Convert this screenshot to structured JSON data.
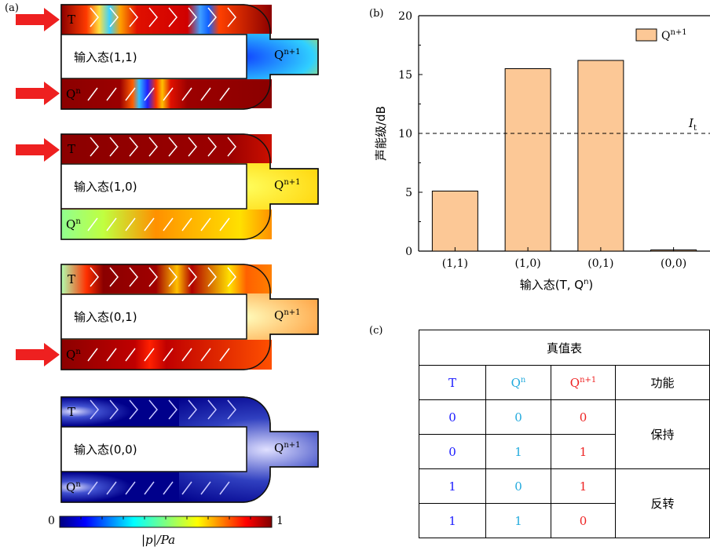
{
  "panel_a": {
    "label": "(a)",
    "devices": [
      {
        "input_label": "输入态(1,1)",
        "t_label": "T",
        "q_label": "Q",
        "q_sup": "n",
        "out_label": "Q",
        "out_sup": "n+1"
      },
      {
        "input_label": "输入态(1,0)",
        "t_label": "T",
        "q_label": "Q",
        "q_sup": "n",
        "out_label": "Q",
        "out_sup": "n+1"
      },
      {
        "input_label": "输入态(0,1)",
        "t_label": "T",
        "q_label": "Q",
        "q_sup": "n",
        "out_label": "Q",
        "out_sup": "n+1"
      },
      {
        "input_label": "输入态(0,0)",
        "t_label": "T",
        "q_label": "Q",
        "q_sup": "n",
        "out_label": "Q",
        "out_sup": "n+1"
      }
    ],
    "colorbar": {
      "min_label": "0",
      "max_label": "1",
      "label": "|p|/Pa"
    },
    "colors": {
      "arrow": "#ee2020",
      "high": "#8b0000",
      "low": "#00008b"
    }
  },
  "chart_data": {
    "type": "bar",
    "panel_label": "(b)",
    "categories": [
      "(1,1)",
      "(1,0)",
      "(0,1)",
      "(0,0)"
    ],
    "series": [
      {
        "name": "Q",
        "name_sup": "n+1",
        "values": [
          5.1,
          15.5,
          16.2,
          0.1
        ],
        "color": "#fcc896"
      }
    ],
    "xlabel": "输入态(T, Q",
    "xlabel_sup": "n",
    "xlabel_end": ")",
    "ylabel": "声能级/dB",
    "ylim": [
      0,
      20
    ],
    "yticks": [
      0,
      5,
      10,
      15,
      20
    ],
    "threshold": {
      "value": 10,
      "label": "I",
      "label_sub": "t"
    },
    "legend_position": "top-right",
    "grid": false
  },
  "panel_c": {
    "label": "(c)",
    "title": "真值表",
    "headers": {
      "t": "T",
      "q": "Q",
      "q_sup": "n",
      "q1": "Q",
      "q1_sup": "n+1",
      "fn": "功能"
    },
    "rows": [
      {
        "t": "0",
        "q": "0",
        "q1": "0"
      },
      {
        "t": "0",
        "q": "1",
        "q1": "1"
      },
      {
        "t": "1",
        "q": "0",
        "q1": "1"
      },
      {
        "t": "1",
        "q": "1",
        "q1": "0"
      }
    ],
    "functions": [
      "保持",
      "反转"
    ]
  }
}
